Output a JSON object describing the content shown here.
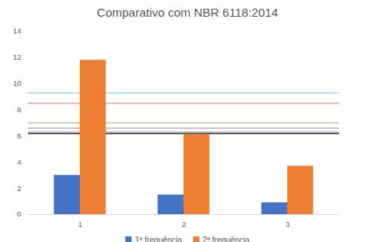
{
  "chart_data": {
    "type": "bar",
    "title": "Comparativo com NBR 6118:2014",
    "categories": [
      "1",
      "2",
      "3"
    ],
    "series": [
      {
        "name": "1ª frequência",
        "color": "#4472c4",
        "values": [
          3.0,
          1.5,
          0.9
        ]
      },
      {
        "name": "2ª frequência",
        "color": "#ed7d31",
        "values": [
          11.8,
          6.1,
          3.7
        ]
      }
    ],
    "reference_lines": [
      {
        "value": 9.3,
        "color": "#9fd9ea"
      },
      {
        "value": 8.5,
        "color": "#f4a0a0"
      },
      {
        "value": 7.0,
        "color": "#a9d18e"
      },
      {
        "value": 6.6,
        "color": "#c9a6dc"
      },
      {
        "value": 6.3,
        "color": "#a6a6a6"
      },
      {
        "value": 6.2,
        "color": "#404040"
      }
    ],
    "ylim": [
      0,
      14
    ],
    "yticks": [
      0,
      2,
      4,
      6,
      8,
      10,
      12,
      14
    ],
    "grid": false,
    "legend": "bottom"
  }
}
